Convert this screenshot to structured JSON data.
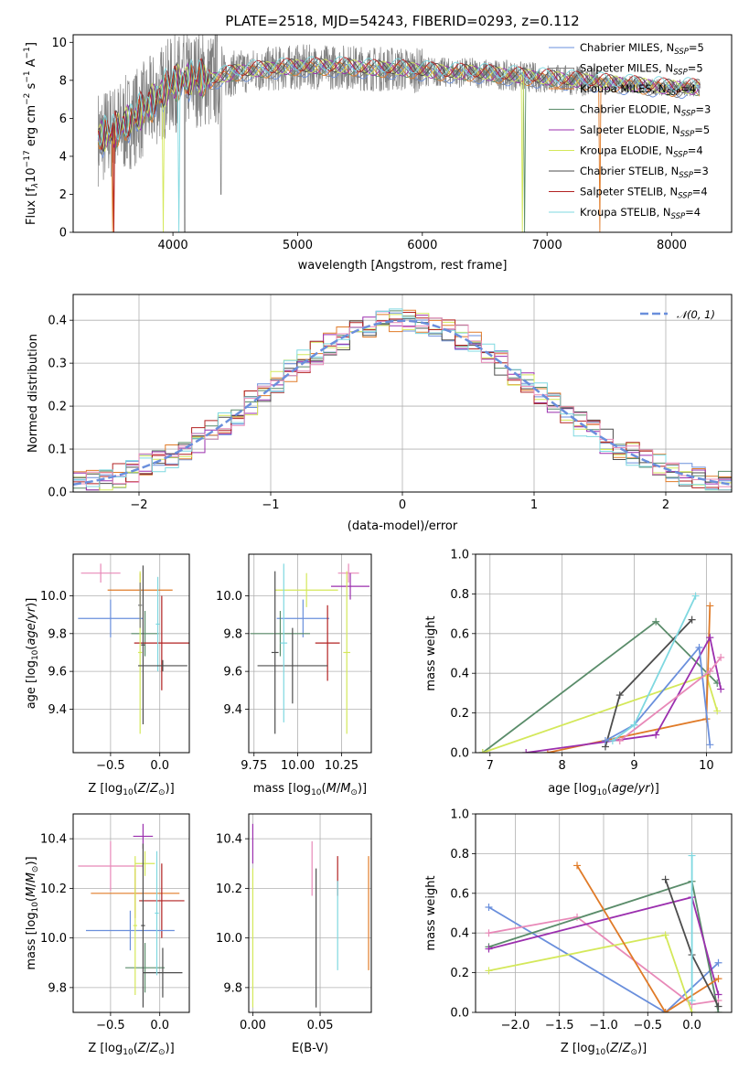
{
  "figure_title": "PLATE=2518, MJD=54243, FIBERID=0293, z=0.112",
  "colors": [
    "#6a8fdc",
    "#7f7f7f",
    "#e07b28",
    "#5a8c6a",
    "#9b2fae",
    "#d4e85a",
    "#4d4d4d",
    "#b22222",
    "#7fd8e0",
    "#e889b8"
  ],
  "chart_data": [
    {
      "id": "spectrum",
      "type": "line",
      "title": "PLATE=2518, MJD=54243, FIBERID=0293, z=0.112",
      "xlabel": "wavelength [Angstrom, rest frame]",
      "ylabel": "Flux [f_λ 10^-17 erg cm^-2 s^-1 A^-1]",
      "xlim": [
        3200,
        8480
      ],
      "ylim": [
        0,
        10.4
      ],
      "xticks": [
        4000,
        5000,
        6000,
        7000,
        8000
      ],
      "yticks": [
        0,
        2,
        4,
        6,
        8,
        10
      ],
      "grid": false,
      "legend_position": "upper-right",
      "series": [
        {
          "name": "Chabrier MILES, N_SSP=5",
          "color": "#6a8fdc"
        },
        {
          "name": "Salpeter MILES, N_SSP=5",
          "color": "#7f7f7f"
        },
        {
          "name": "Kroupa MILES, N_SSP=4",
          "color": "#e07b28"
        },
        {
          "name": "Chabrier ELODIE, N_SSP=3",
          "color": "#5a8c6a"
        },
        {
          "name": "Salpeter ELODIE, N_SSP=5",
          "color": "#9b2fae"
        },
        {
          "name": "Kroupa ELODIE, N_SSP=4",
          "color": "#d4e85a"
        },
        {
          "name": "Chabrier STELIB, N_SSP=3",
          "color": "#4d4d4d"
        },
        {
          "name": "Salpeter STELIB, N_SSP=4",
          "color": "#b22222"
        },
        {
          "name": "Kroupa STELIB, N_SSP=4",
          "color": "#7fd8e0"
        }
      ],
      "data_continuum": {
        "x": [
          3400,
          3500,
          3600,
          3700,
          3800,
          3900,
          4000,
          4100,
          4200,
          4300,
          4400,
          4500,
          4600,
          4800,
          5000,
          5200,
          5400,
          5600,
          5800,
          6000,
          6200,
          6400,
          6600,
          6800,
          7000,
          7200,
          7400,
          7600,
          7800,
          8000,
          8200
        ],
        "y": [
          5.0,
          5.2,
          5.6,
          6.1,
          6.6,
          7.3,
          7.8,
          8.0,
          8.1,
          8.0,
          8.2,
          8.4,
          8.5,
          8.6,
          8.7,
          8.7,
          8.7,
          8.6,
          8.6,
          8.5,
          8.4,
          8.4,
          8.3,
          8.2,
          8.1,
          8.0,
          7.9,
          7.8,
          7.7,
          7.6,
          7.6
        ]
      }
    },
    {
      "id": "residuals",
      "type": "histogram",
      "xlabel": "(data-model)/error",
      "ylabel": "Normed distribution",
      "xlim": [
        -2.5,
        2.5
      ],
      "ylim": [
        0,
        0.46
      ],
      "xticks": [
        -2,
        -1,
        0,
        1,
        2
      ],
      "yticks": [
        0.0,
        0.1,
        0.2,
        0.3,
        0.4
      ],
      "grid": true,
      "legend_position": "upper-right",
      "reference": {
        "name": "𝒩(0, 1)",
        "mean": 0,
        "sigma": 1,
        "color": "#6a8fdc"
      },
      "bin_width": 0.1
    },
    {
      "id": "age_vs_Z",
      "type": "errorbar",
      "xlabel": "Z [log10(Z/Z⊙)]",
      "ylabel": "age [log10(age/yr)]",
      "xlim": [
        -0.88,
        0.3
      ],
      "ylim": [
        9.17,
        10.22
      ],
      "xticks": [
        -0.5,
        0.0
      ],
      "yticks": [
        9.4,
        9.6,
        9.8,
        10.0
      ],
      "grid": true,
      "points": [
        {
          "x": -0.6,
          "y": 10.12,
          "xerr": 0.2,
          "yerr": 0.05,
          "color": "#e889b8"
        },
        {
          "x": -0.2,
          "y": 10.03,
          "xerr": 0.33,
          "yerr": 0.09,
          "color": "#e07b28"
        },
        {
          "x": -0.5,
          "y": 9.88,
          "xerr": 0.33,
          "yerr": 0.1,
          "color": "#6a8fdc"
        },
        {
          "x": -0.15,
          "y": 9.8,
          "xerr": 0.14,
          "yerr": 0.12,
          "color": "#5a8c6a"
        },
        {
          "x": 0.02,
          "y": 9.75,
          "xerr": 0.28,
          "yerr": 0.25,
          "color": "#b22222"
        },
        {
          "x": -0.2,
          "y": 9.7,
          "xerr": 0.02,
          "yerr": 0.43,
          "color": "#d4e85a"
        },
        {
          "x": -0.17,
          "y": 9.74,
          "xerr": 0.02,
          "yerr": 0.42,
          "color": "#4d4d4d"
        },
        {
          "x": -0.02,
          "y": 9.85,
          "xerr": 0.02,
          "yerr": 0.25,
          "color": "#7fd8e0"
        },
        {
          "x": 0.03,
          "y": 9.63,
          "xerr": 0.25,
          "yerr": 0.03,
          "color": "#4d4d4d"
        },
        {
          "x": -0.2,
          "y": 9.95,
          "xerr": 0.02,
          "yerr": 0.12,
          "color": "#7f7f7f"
        }
      ]
    },
    {
      "id": "age_vs_mass",
      "type": "errorbar",
      "xlabel": "mass [log10(M/M⊙)]",
      "ylabel": "",
      "xlim": [
        9.72,
        10.42
      ],
      "ylim": [
        9.17,
        10.22
      ],
      "xticks": [
        9.75,
        10.0,
        10.25
      ],
      "yticks": [
        9.4,
        9.6,
        9.8,
        10.0
      ],
      "grid": true,
      "points": [
        {
          "x": 10.29,
          "y": 10.12,
          "xerr": 0.06,
          "yerr": 0.05,
          "color": "#e889b8"
        },
        {
          "x": 10.3,
          "y": 10.05,
          "xerr": 0.11,
          "yerr": 0.07,
          "color": "#9b2fae"
        },
        {
          "x": 10.05,
          "y": 10.03,
          "xerr": 0.18,
          "yerr": 0.09,
          "color": "#d4e85a"
        },
        {
          "x": 10.03,
          "y": 9.88,
          "xerr": 0.15,
          "yerr": 0.1,
          "color": "#6a8fdc"
        },
        {
          "x": 9.9,
          "y": 9.8,
          "xerr": 0.17,
          "yerr": 0.12,
          "color": "#5a8c6a"
        },
        {
          "x": 10.17,
          "y": 9.75,
          "xerr": 0.07,
          "yerr": 0.2,
          "color": "#b22222"
        },
        {
          "x": 9.97,
          "y": 9.63,
          "xerr": 0.2,
          "yerr": 0.2,
          "color": "#4d4d4d"
        },
        {
          "x": 9.87,
          "y": 9.7,
          "xerr": 0.02,
          "yerr": 0.43,
          "color": "#4d4d4d"
        },
        {
          "x": 9.92,
          "y": 9.75,
          "xerr": 0.02,
          "yerr": 0.42,
          "color": "#7fd8e0"
        },
        {
          "x": 10.28,
          "y": 9.7,
          "xerr": 0.02,
          "yerr": 0.43,
          "color": "#d4e85a"
        }
      ]
    },
    {
      "id": "mass_weight_vs_age",
      "type": "line",
      "xlabel": "age [log10(age/yr)]",
      "ylabel": "mass weight",
      "xlim": [
        6.8,
        10.35
      ],
      "ylim": [
        0,
        1.0
      ],
      "xticks": [
        7,
        8,
        9,
        10
      ],
      "yticks": [
        0.0,
        0.2,
        0.4,
        0.6,
        0.8,
        1.0
      ],
      "grid": true,
      "series": [
        {
          "color": "#5a8c6a",
          "x": [
            6.9,
            9.3,
            10.15
          ],
          "y": [
            0.0,
            0.66,
            0.35
          ]
        },
        {
          "color": "#d4e85a",
          "x": [
            6.9,
            10.0,
            10.15
          ],
          "y": [
            0.0,
            0.39,
            0.21
          ]
        },
        {
          "color": "#e07b28",
          "x": [
            7.8,
            10.0,
            10.05
          ],
          "y": [
            0.0,
            0.17,
            0.74
          ]
        },
        {
          "color": "#9b2fae",
          "x": [
            7.5,
            9.3,
            10.05,
            10.2
          ],
          "y": [
            0.0,
            0.09,
            0.58,
            0.32
          ]
        },
        {
          "color": "#4d4d4d",
          "x": [
            8.6,
            8.8,
            9.8
          ],
          "y": [
            0.03,
            0.29,
            0.67
          ]
        },
        {
          "color": "#6a8fdc",
          "x": [
            8.6,
            9.0,
            9.9,
            10.05
          ],
          "y": [
            0.06,
            0.14,
            0.53,
            0.04
          ]
        },
        {
          "color": "#7fd8e0",
          "x": [
            8.7,
            9.0,
            9.85
          ],
          "y": [
            0.06,
            0.14,
            0.79
          ]
        },
        {
          "color": "#e889b8",
          "x": [
            8.8,
            10.05,
            10.2
          ],
          "y": [
            0.06,
            0.41,
            0.48
          ]
        }
      ]
    },
    {
      "id": "mass_vs_Z",
      "type": "errorbar",
      "xlabel": "Z [log10(Z/Z⊙)]",
      "ylabel": "mass [log10(M/M⊙)]",
      "xlim": [
        -0.88,
        0.3
      ],
      "ylim": [
        9.7,
        10.5
      ],
      "xticks": [
        -0.5,
        0.0
      ],
      "yticks": [
        9.8,
        10.0,
        10.2,
        10.4
      ],
      "grid": true,
      "points": [
        {
          "x": -0.17,
          "y": 10.41,
          "xerr": 0.1,
          "yerr": 0.05,
          "color": "#9b2fae"
        },
        {
          "x": -0.5,
          "y": 10.29,
          "xerr": 0.33,
          "yerr": 0.1,
          "color": "#e889b8"
        },
        {
          "x": -0.15,
          "y": 10.3,
          "xerr": 0.1,
          "yerr": 0.05,
          "color": "#d4e85a"
        },
        {
          "x": -0.25,
          "y": 10.18,
          "xerr": 0.45,
          "yerr": 0.1,
          "color": "#e07b28"
        },
        {
          "x": 0.02,
          "y": 10.15,
          "xerr": 0.23,
          "yerr": 0.15,
          "color": "#b22222"
        },
        {
          "x": -0.3,
          "y": 10.03,
          "xerr": 0.45,
          "yerr": 0.08,
          "color": "#6a8fdc"
        },
        {
          "x": -0.15,
          "y": 9.88,
          "xerr": 0.2,
          "yerr": 0.1,
          "color": "#5a8c6a"
        },
        {
          "x": 0.03,
          "y": 9.86,
          "xerr": 0.2,
          "yerr": 0.1,
          "color": "#4d4d4d"
        },
        {
          "x": -0.25,
          "y": 10.05,
          "xerr": 0.02,
          "yerr": 0.28,
          "color": "#d4e85a"
        },
        {
          "x": -0.17,
          "y": 10.05,
          "xerr": 0.02,
          "yerr": 0.33,
          "color": "#4d4d4d"
        },
        {
          "x": -0.03,
          "y": 10.1,
          "xerr": 0.02,
          "yerr": 0.25,
          "color": "#7fd8e0"
        }
      ]
    },
    {
      "id": "mass_vs_EBV",
      "type": "errorbar",
      "xlabel": "E(B-V)",
      "ylabel": "",
      "xlim": [
        -0.003,
        0.088
      ],
      "ylim": [
        9.7,
        10.5
      ],
      "xticks": [
        0.0,
        0.05
      ],
      "yticks": [
        9.8,
        10.0,
        10.2,
        10.4
      ],
      "grid": true,
      "points": [
        {
          "x": 0.0,
          "y": 10.38,
          "xerr": 0.0,
          "yerr": 0.08,
          "color": "#9b2fae"
        },
        {
          "x": 0.0,
          "y": 10.0,
          "xerr": 0.0,
          "yerr": 0.28,
          "color": "#d4e85a"
        },
        {
          "x": 0.044,
          "y": 10.28,
          "xerr": 0.0,
          "yerr": 0.11,
          "color": "#e889b8"
        },
        {
          "x": 0.047,
          "y": 10.0,
          "xerr": 0.0,
          "yerr": 0.28,
          "color": "#4d4d4d"
        },
        {
          "x": 0.063,
          "y": 10.25,
          "xerr": 0.0,
          "yerr": 0.08,
          "color": "#b22222"
        },
        {
          "x": 0.063,
          "y": 10.05,
          "xerr": 0.0,
          "yerr": 0.18,
          "color": "#7fd8e0"
        },
        {
          "x": 0.086,
          "y": 10.1,
          "xerr": 0.0,
          "yerr": 0.23,
          "color": "#e07b28"
        }
      ]
    },
    {
      "id": "mass_weight_vs_Z",
      "type": "line",
      "xlabel": "Z [log10(Z/Z⊙)]",
      "ylabel": "mass weight",
      "xlim": [
        -2.45,
        0.45
      ],
      "ylim": [
        0,
        1.0
      ],
      "xticks": [
        -2.0,
        -1.5,
        -1.0,
        -0.5,
        0.0
      ],
      "yticks": [
        0.0,
        0.2,
        0.4,
        0.6,
        0.8,
        1.0
      ],
      "grid": true,
      "series": [
        {
          "color": "#6a8fdc",
          "x": [
            -2.3,
            -0.3,
            0.3
          ],
          "y": [
            0.53,
            0.0,
            0.25
          ]
        },
        {
          "color": "#e889b8",
          "x": [
            -2.3,
            -1.3,
            0.0,
            0.3
          ],
          "y": [
            0.4,
            0.48,
            0.04,
            0.06
          ]
        },
        {
          "color": "#5a8c6a",
          "x": [
            -2.3,
            0.0,
            0.3
          ],
          "y": [
            0.33,
            0.66,
            0.0
          ]
        },
        {
          "color": "#9b2fae",
          "x": [
            -2.3,
            0.0,
            0.3
          ],
          "y": [
            0.32,
            0.58,
            0.09
          ]
        },
        {
          "color": "#d4e85a",
          "x": [
            -2.3,
            -0.3,
            0.0
          ],
          "y": [
            0.21,
            0.39,
            0.0
          ]
        },
        {
          "color": "#e07b28",
          "x": [
            -1.3,
            -0.3,
            0.3
          ],
          "y": [
            0.74,
            0.0,
            0.17
          ]
        },
        {
          "color": "#4d4d4d",
          "x": [
            -0.3,
            0.0,
            0.3
          ],
          "y": [
            0.67,
            0.29,
            0.03
          ]
        },
        {
          "color": "#7fd8e0",
          "x": [
            0.0,
            0.0
          ],
          "y": [
            0.79,
            0.06
          ]
        }
      ]
    }
  ]
}
